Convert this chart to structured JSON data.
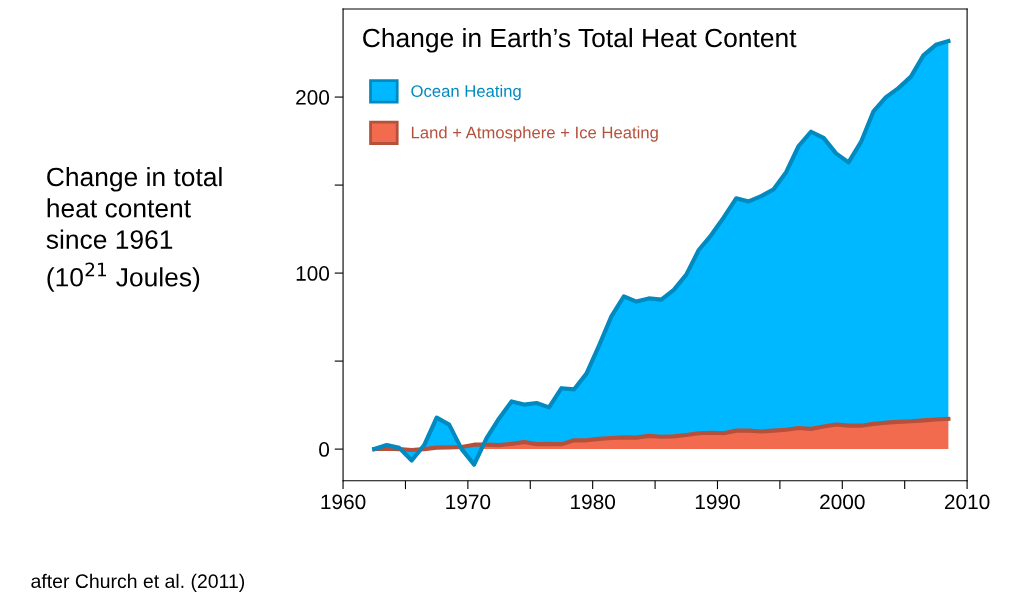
{
  "chart_data": {
    "type": "area",
    "stacked": true,
    "title": "Change in Earth’s Total Heat Content",
    "ylabel": "Change in total\nheat content\nsince 1961\n(10$^{21}$ Joules)",
    "annotations": [
      "after Church et al. (2011)"
    ],
    "x": [
      1962.5,
      1963.5,
      1964.5,
      1965.5,
      1966.5,
      1967.5,
      1968.5,
      1969.5,
      1970.5,
      1971.5,
      1972.5,
      1973.5,
      1974.5,
      1975.5,
      1976.5,
      1977.5,
      1978.5,
      1979.5,
      1980.5,
      1981.5,
      1982.5,
      1983.5,
      1984.5,
      1985.5,
      1986.5,
      1987.5,
      1988.5,
      1989.5,
      1990.5,
      1991.5,
      1992.5,
      1993.5,
      1994.5,
      1995.5,
      1996.5,
      1997.5,
      1998.5,
      1999.5,
      2000.5,
      2001.5,
      2002.5,
      2003.5,
      2004.5,
      2005.5,
      2006.5,
      2007.5,
      2008.5
    ],
    "series": [
      {
        "name": "Land + Atmosphere + Ice Heating",
        "color": "#f26b4f",
        "values": [
          0,
          0.3,
          0,
          -0.5,
          0,
          0.8,
          1,
          1.2,
          2.5,
          2.5,
          2.3,
          3,
          4,
          2.8,
          3,
          2.8,
          5,
          5,
          5.8,
          6.3,
          6.7,
          6.5,
          7.5,
          7,
          7.2,
          8,
          9,
          9.3,
          9,
          10.5,
          10.5,
          10,
          10.5,
          11,
          12,
          11.5,
          12.8,
          14,
          13.3,
          13.3,
          14.3,
          15,
          15.5,
          15.8,
          16.3,
          16.8,
          17.2
        ]
      },
      {
        "name": "Ocean Heating",
        "color": "#00b8ff",
        "values": [
          0,
          2.0,
          0.7,
          -6.0,
          2.3,
          17.1,
          12.9,
          -1.2,
          -11.3,
          3.8,
          15.1,
          24.1,
          21.3,
          23.4,
          20.7,
          31.8,
          28.9,
          37.9,
          52.9,
          69.1,
          80.1,
          77.3,
          78.1,
          77.9,
          83.3,
          91.1,
          104.1,
          112.3,
          122.6,
          132.0,
          130.2,
          133.7,
          137.1,
          146.3,
          160.2,
          168.8,
          164.0,
          154.0,
          149.6,
          161.2,
          177.6,
          185.0,
          189.6,
          195.8,
          207.4,
          212.9,
          214.6
        ]
      }
    ],
    "xlim": [
      1960,
      2010
    ],
    "xticks": [
      1960,
      {
        "value": 1965,
        "label": null
      },
      1970,
      {
        "value": 1975,
        "label": null
      },
      1980,
      {
        "value": 1985,
        "label": null
      },
      1990,
      {
        "value": 1995,
        "label": null
      },
      2000,
      {
        "value": 2005,
        "label": null
      },
      2010
    ],
    "ylim": [
      -18,
      250
    ],
    "yticks": [
      0,
      {
        "value": 50,
        "label": null
      },
      100,
      {
        "value": 150,
        "label": null
      },
      200
    ],
    "legend": "top left",
    "grid": false
  }
}
